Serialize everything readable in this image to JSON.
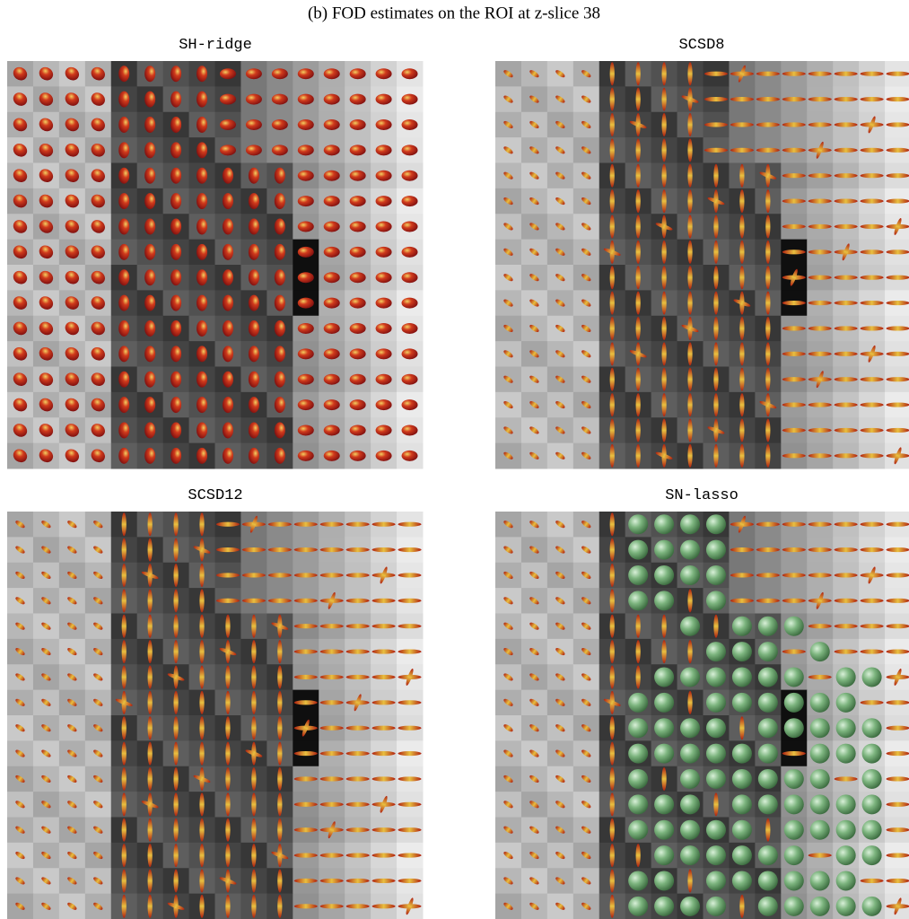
{
  "title": "(b) FOD estimates on the ROI at z-slice 38",
  "panels": [
    {
      "title": "SH-ridge"
    },
    {
      "title": "SCSD8"
    },
    {
      "title": "SCSD12"
    },
    {
      "title": "SN-lasso"
    }
  ]
}
